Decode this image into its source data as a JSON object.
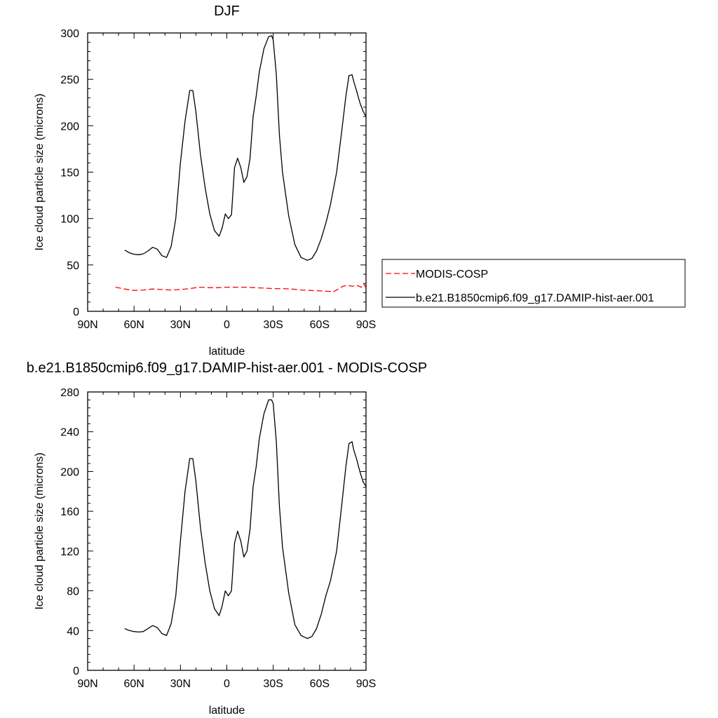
{
  "chart_data": [
    {
      "type": "line",
      "title": "DJF",
      "xlabel": "latitude",
      "ylabel": "Ice cloud particle size (microns)",
      "xlim": [
        90,
        -90
      ],
      "ylim": [
        0,
        300
      ],
      "x_ticks": [
        90,
        60,
        30,
        0,
        -30,
        -60,
        -90
      ],
      "x_tick_labels": [
        "90N",
        "60N",
        "30N",
        "0",
        "30S",
        "60S",
        "90S"
      ],
      "y_ticks": [
        0,
        50,
        100,
        150,
        200,
        250,
        300
      ],
      "y_tick_labels": [
        "0",
        "50",
        "100",
        "150",
        "200",
        "250",
        "300"
      ],
      "grid": false,
      "legend": "right, outside plot",
      "series": [
        {
          "name": "MODIS-COSP",
          "color": "#ff0000",
          "dash": "dashed",
          "x": [
            72,
            66,
            60,
            54,
            48,
            42,
            36,
            30,
            24,
            18,
            12,
            6,
            0,
            -6,
            -12,
            -18,
            -24,
            -30,
            -36,
            -42,
            -48,
            -54,
            -60,
            -66,
            -69,
            -72,
            -75,
            -78,
            -81,
            -84,
            -87,
            -88.5,
            -90
          ],
          "y": [
            26,
            24,
            22.5,
            23,
            24,
            23.5,
            23,
            23.5,
            24.5,
            26,
            25.5,
            25.5,
            26,
            26,
            26,
            25.5,
            25,
            24.5,
            24.5,
            24,
            23,
            22.5,
            22,
            21.5,
            21,
            24,
            27,
            28,
            27,
            28,
            26,
            30,
            25
          ]
        },
        {
          "name": "b.e21.B1850cmip6.f09_g17.DAMIP-hist-aer.001",
          "color": "#000000",
          "dash": "solid",
          "x": [
            66,
            63,
            60,
            57,
            54,
            51,
            48,
            45,
            42,
            39,
            36,
            33,
            30,
            27,
            24,
            22,
            20,
            17,
            14,
            11,
            8,
            5,
            3,
            1,
            -1,
            -3,
            -5,
            -7,
            -9,
            -11,
            -13,
            -15,
            -17,
            -19,
            -21,
            -24,
            -27,
            -29,
            -30,
            -32,
            -34,
            -36,
            -40,
            -44,
            -48,
            -52,
            -55,
            -58,
            -61,
            -64,
            -67,
            -71,
            -74,
            -77,
            -79,
            -81,
            -82,
            -84,
            -86,
            -88,
            -90
          ],
          "y": [
            66,
            63,
            61.5,
            61,
            62,
            65,
            69,
            67,
            60,
            58,
            70,
            100,
            160,
            205,
            238,
            238,
            215,
            168,
            133,
            105,
            87,
            81,
            90,
            105,
            100,
            104,
            155,
            165,
            155,
            139,
            145,
            165,
            210,
            232,
            258,
            283,
            296,
            297,
            292,
            255,
            190,
            150,
            103,
            72,
            58,
            55,
            57,
            65,
            78,
            95,
            115,
            150,
            190,
            232,
            254,
            255,
            248,
            237,
            225,
            216,
            210
          ]
        }
      ]
    },
    {
      "type": "line",
      "title": "b.e21.B1850cmip6.f09_g17.DAMIP-hist-aer.001 - MODIS-COSP",
      "xlabel": "latitude",
      "ylabel": "Ice cloud particle size (microns)",
      "xlim": [
        90,
        -90
      ],
      "ylim": [
        0,
        280
      ],
      "x_ticks": [
        90,
        60,
        30,
        0,
        -30,
        -60,
        -90
      ],
      "x_tick_labels": [
        "90N",
        "60N",
        "30N",
        "0",
        "30S",
        "60S",
        "90S"
      ],
      "y_ticks": [
        0,
        40,
        80,
        120,
        160,
        200,
        240,
        280
      ],
      "y_tick_labels": [
        "0",
        "40",
        "80",
        "120",
        "160",
        "200",
        "240",
        "280"
      ],
      "grid": false,
      "series": [
        {
          "color": "#000000",
          "dash": "solid",
          "x": [
            66,
            63,
            60,
            57,
            54,
            51,
            48,
            45,
            42,
            39,
            36,
            33,
            30,
            27,
            24,
            22,
            20,
            17,
            14,
            11,
            8,
            5,
            3,
            1,
            -1,
            -3,
            -5,
            -7,
            -9,
            -11,
            -13,
            -15,
            -17,
            -19,
            -21,
            -24,
            -27,
            -29,
            -30,
            -32,
            -34,
            -36,
            -40,
            -44,
            -48,
            -52,
            -55,
            -58,
            -61,
            -64,
            -67,
            -71,
            -74,
            -77,
            -79,
            -81,
            -82,
            -84,
            -86,
            -88,
            -90
          ],
          "y": [
            42,
            40,
            39,
            38.5,
            39,
            42,
            45,
            43,
            37,
            35,
            47,
            75,
            130,
            180,
            213,
            213,
            190,
            143,
            108,
            80,
            62,
            55,
            65,
            80,
            75,
            80,
            128,
            140,
            130,
            114,
            120,
            142,
            185,
            205,
            233,
            258,
            272,
            272,
            268,
            230,
            165,
            124,
            78,
            46,
            35,
            32,
            34,
            42,
            56,
            75,
            90,
            120,
            162,
            205,
            228,
            230,
            222,
            212,
            200,
            190,
            185
          ]
        }
      ]
    }
  ],
  "legend": {
    "entries": [
      "MODIS-COSP",
      "b.e21.B1850cmip6.f09_g17.DAMIP-hist-aer.001"
    ]
  }
}
